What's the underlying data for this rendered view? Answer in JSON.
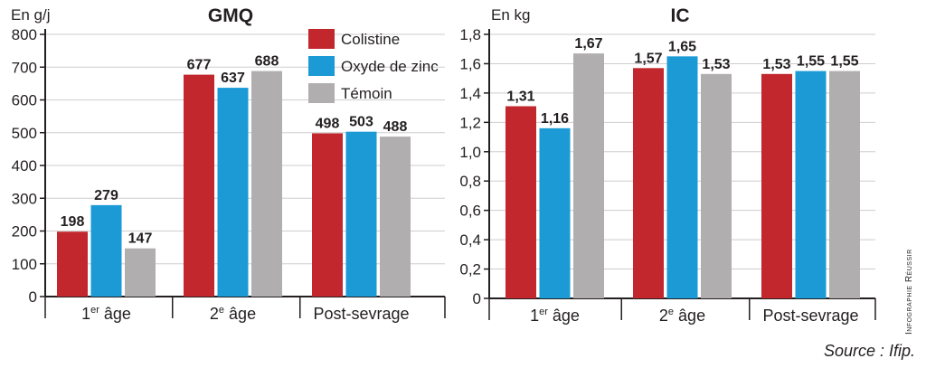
{
  "colors": {
    "colistine": "#c1272d",
    "oxyde": "#1b9ad6",
    "temoin": "#b1aeb0"
  },
  "legend": [
    {
      "name": "Colistine",
      "color": "#c1272d"
    },
    {
      "name": "Oxyde de zinc",
      "color": "#1b9ad6"
    },
    {
      "name": "Témoin",
      "color": "#b1aeb0"
    }
  ],
  "source": "Source : Ifip.",
  "credit": "Infographie Réussir",
  "chart_data": [
    {
      "type": "bar",
      "title": "GMQ",
      "ylabel": "En g/j",
      "ylim": [
        0,
        800
      ],
      "yticks": [
        "0",
        "100",
        "200",
        "300",
        "400",
        "500",
        "600",
        "700",
        "800"
      ],
      "categories": [
        {
          "pre": "1",
          "sup": "er",
          "post": " âge"
        },
        {
          "pre": "2",
          "sup": "e",
          "post": " âge"
        },
        {
          "pre": "Post-sevrage",
          "sup": "",
          "post": ""
        }
      ],
      "series": [
        {
          "name": "Colistine",
          "values": [
            198,
            677,
            498
          ],
          "labels": [
            "198",
            "677",
            "498"
          ]
        },
        {
          "name": "Oxyde de zinc",
          "values": [
            279,
            637,
            503
          ],
          "labels": [
            "279",
            "637",
            "503"
          ]
        },
        {
          "name": "Témoin",
          "values": [
            147,
            688,
            488
          ],
          "labels": [
            "147",
            "688",
            "488"
          ]
        }
      ]
    },
    {
      "type": "bar",
      "title": "IC",
      "ylabel": "En kg",
      "ylim": [
        0,
        1.8
      ],
      "yticks": [
        "0",
        "0,2",
        "0,4",
        "0,6",
        "0,8",
        "1,0",
        "1,2",
        "1,4",
        "1,6",
        "1,8"
      ],
      "categories": [
        {
          "pre": "1",
          "sup": "er",
          "post": " âge"
        },
        {
          "pre": "2",
          "sup": "e",
          "post": " âge"
        },
        {
          "pre": "Post-sevrage",
          "sup": "",
          "post": ""
        }
      ],
      "series": [
        {
          "name": "Colistine",
          "values": [
            1.31,
            1.57,
            1.53
          ],
          "labels": [
            "1,31",
            "1,57",
            "1,53"
          ]
        },
        {
          "name": "Oxyde de zinc",
          "values": [
            1.16,
            1.65,
            1.55
          ],
          "labels": [
            "1,16",
            "1,65",
            "1,55"
          ]
        },
        {
          "name": "Témoin",
          "values": [
            1.67,
            1.53,
            1.55
          ],
          "labels": [
            "1,67",
            "1,53",
            "1,55"
          ]
        }
      ]
    }
  ]
}
